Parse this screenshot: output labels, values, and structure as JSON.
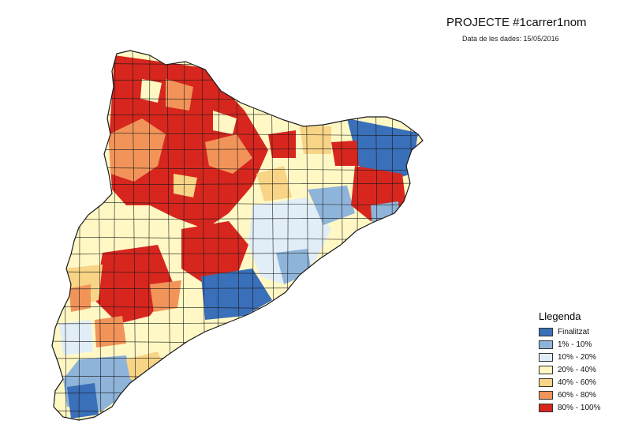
{
  "header": {
    "title": "PROJECTE #1carrer1nom",
    "subtitle": "Data de les dades: 15/05/2016"
  },
  "legend": {
    "title": "Llegenda",
    "items": [
      {
        "label": "Finalitzat",
        "color": "#3a6fb9"
      },
      {
        "label": "1% - 10%",
        "color": "#8fb4da"
      },
      {
        "label": "10% - 20%",
        "color": "#e2eef7"
      },
      {
        "label": "20% - 40%",
        "color": "#fff8c4"
      },
      {
        "label": "40% - 60%",
        "color": "#f8d486"
      },
      {
        "label": "60% - 80%",
        "color": "#f29459"
      },
      {
        "label": "80% - 100%",
        "color": "#d7261e"
      }
    ]
  },
  "map": {
    "region": "Catalunya",
    "boundary_color": "#1a1a1a"
  }
}
